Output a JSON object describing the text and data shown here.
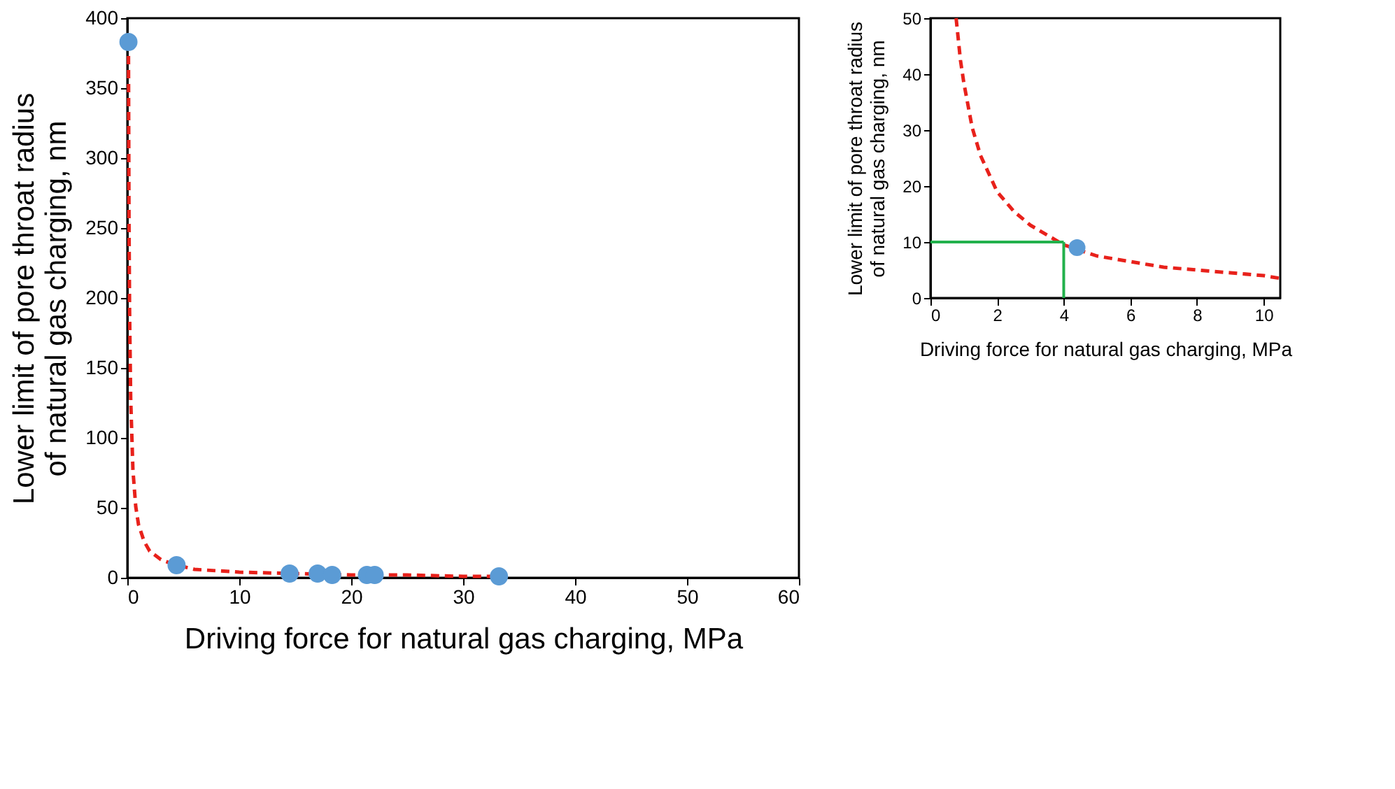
{
  "chart_data": [
    {
      "type": "scatter",
      "xlabel": "Driving force for natural gas charging, MPa",
      "ylabel": "Lower limit of pore throat radius\nof natural gas charging, nm",
      "xlim": [
        0,
        60
      ],
      "xticks": [
        0,
        10,
        20,
        30,
        40,
        50,
        60
      ],
      "ylim": [
        0,
        400
      ],
      "yticks": [
        0,
        50,
        100,
        150,
        200,
        250,
        300,
        350,
        400
      ],
      "marker": "circle",
      "series": [
        {
          "type": "line",
          "color": "#e8211b",
          "line_style": "dashed",
          "marker": "none",
          "x": [
            0.1,
            0.15,
            0.2,
            0.3,
            0.5,
            0.75,
            1,
            1.5,
            2,
            3,
            4,
            5,
            6,
            8,
            10,
            15,
            20,
            25,
            30,
            33.2
          ],
          "values": [
            383,
            255,
            192,
            128,
            77,
            51,
            38,
            26,
            19,
            13,
            10,
            8,
            6,
            5,
            4,
            3,
            2,
            2,
            1,
            1
          ]
        },
        {
          "color": "#5b9bd5",
          "x": [
            0.1,
            4.4,
            14.5,
            17,
            18.3,
            21.4,
            22.1,
            33.2
          ],
          "values": [
            383,
            9,
            3,
            3,
            2,
            2,
            2,
            1
          ]
        }
      ]
    },
    {
      "type": "scatter",
      "xlabel": "Driving force for natural gas charging, MPa",
      "ylabel": "Lower limit of pore throat radius\nof natural gas charging, nm",
      "xlim": [
        0,
        10.5
      ],
      "xticks": [
        0,
        2,
        4,
        6,
        8,
        10
      ],
      "ylim": [
        0,
        50
      ],
      "yticks": [
        0,
        10,
        20,
        30,
        40,
        50
      ],
      "marker": "circle",
      "series": [
        {
          "type": "line",
          "color": "#e8211b",
          "line_style": "dashed",
          "marker": "none",
          "x": [
            0.77,
            0.9,
            1,
            1.25,
            1.5,
            2,
            2.5,
            3,
            4,
            5,
            6,
            7,
            8,
            9,
            10,
            10.5
          ],
          "values": [
            50,
            42.5,
            38.5,
            30.5,
            25.5,
            19,
            15.5,
            13,
            9.5,
            7.5,
            6.5,
            5.5,
            5,
            4.5,
            4,
            3.5
          ]
        },
        {
          "color": "#5b9bd5",
          "x": [
            4.4
          ],
          "values": [
            9
          ]
        }
      ],
      "ref_lines": [
        {
          "axis": "x",
          "value": 4,
          "color": "#22b14c"
        },
        {
          "axis": "y",
          "value": 10,
          "color": "#22b14c"
        }
      ]
    }
  ]
}
